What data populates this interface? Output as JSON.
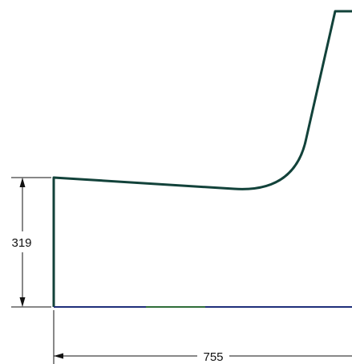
{
  "drawing": {
    "dimensions": {
      "height": {
        "value": "319"
      },
      "width": {
        "value": "755"
      }
    },
    "colors": {
      "profile": "#12423a",
      "base_edge": "#1f2f7a",
      "dimension": "#111111"
    }
  }
}
